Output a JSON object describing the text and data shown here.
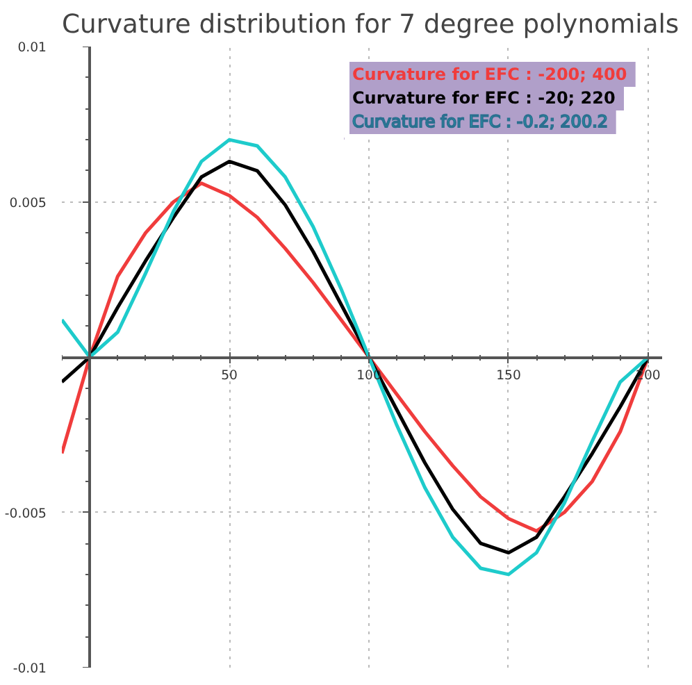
{
  "chart_data": {
    "type": "line",
    "title": "Curvature distribution for 7 degree polynomials",
    "x": [
      -10,
      0,
      10,
      20,
      30,
      40,
      50,
      60,
      70,
      80,
      90,
      100,
      110,
      120,
      130,
      140,
      150,
      160,
      170,
      180,
      190,
      200
    ],
    "series": [
      {
        "name": "Curvature for EFC : -200;  400",
        "color": "#f03c3c",
        "values": [
          -0.0031,
          0,
          0.0026,
          0.004,
          0.005,
          0.0056,
          0.0052,
          0.0045,
          0.0035,
          0.0024,
          0.0012,
          0,
          -0.0012,
          -0.0024,
          -0.0035,
          -0.0045,
          -0.0052,
          -0.0056,
          -0.005,
          -0.004,
          -0.0024,
          0
        ]
      },
      {
        "name": "Curvature for EFC : -20;  220",
        "color": "#000000",
        "values": [
          -0.0008,
          0,
          0.0016,
          0.0031,
          0.0045,
          0.0058,
          0.0063,
          0.006,
          0.0049,
          0.0034,
          0.0017,
          0,
          -0.0017,
          -0.0034,
          -0.0049,
          -0.006,
          -0.0063,
          -0.0058,
          -0.0045,
          -0.0031,
          -0.0016,
          0
        ]
      },
      {
        "name": "Curvature for EFC :  -0.2; 200.2",
        "color": "#1ecbcb",
        "values": [
          0.0012,
          0,
          0.0008,
          0.0027,
          0.0047,
          0.0063,
          0.007,
          0.0068,
          0.0058,
          0.0042,
          0.0022,
          0,
          -0.0022,
          -0.0042,
          -0.0058,
          -0.0068,
          -0.007,
          -0.0063,
          -0.0047,
          -0.0027,
          -0.0008,
          0
        ]
      }
    ],
    "xlim": [
      -10,
      205
    ],
    "ylim": [
      -0.01,
      0.01
    ],
    "xticks": [
      50,
      100,
      150,
      200
    ],
    "yticks": [
      -0.01,
      -0.005,
      0.005,
      0.01
    ],
    "grid": true,
    "legend": "top right"
  }
}
